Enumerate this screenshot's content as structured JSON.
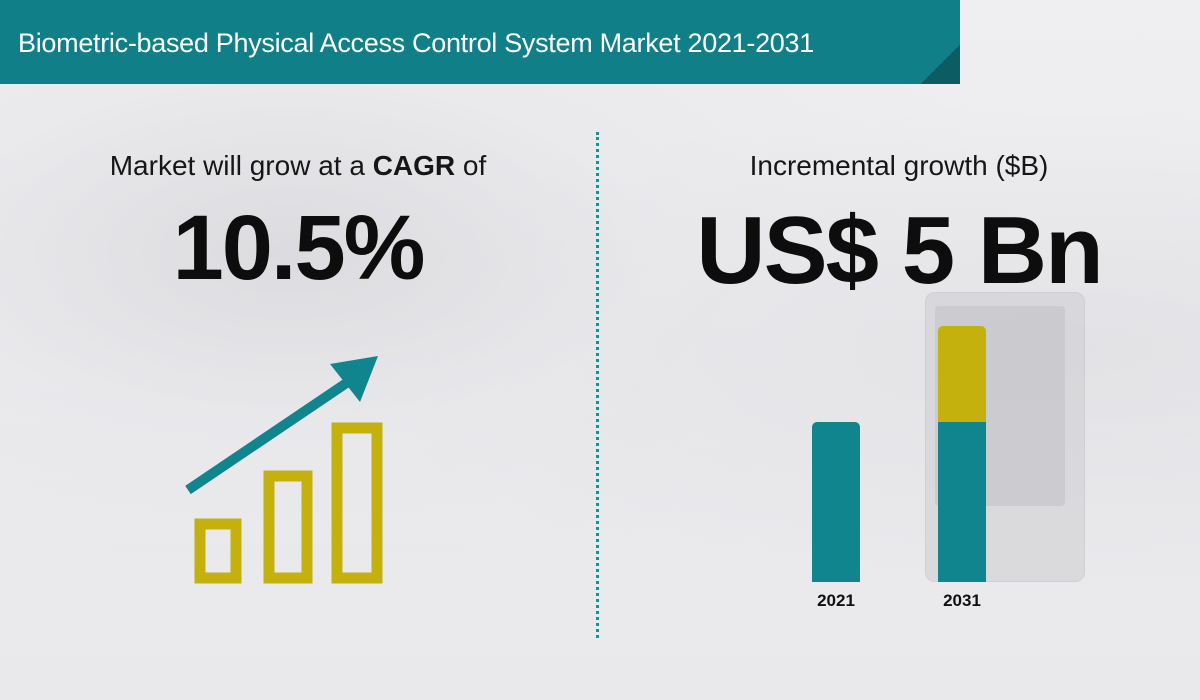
{
  "header": {
    "title": "Biometric-based Physical Access Control System Market 2021-2031",
    "banner_color": "#117f88"
  },
  "cagr": {
    "label_prefix": "Market will grow at a ",
    "label_bold": "CAGR",
    "label_suffix": " of",
    "value": "10.5%",
    "icon": "growth-bars-arrow-icon",
    "icon_bar_color": "#c4b10d",
    "icon_arrow_color": "#11858e"
  },
  "incremental": {
    "label": "Incremental growth ($B)",
    "value": "US$ 5 Bn"
  },
  "chart_data": {
    "type": "bar",
    "stacked": true,
    "categories": [
      "2021",
      "2031"
    ],
    "series": [
      {
        "values": [
          5,
          5
        ],
        "color": "#11858e"
      },
      {
        "values": [
          0,
          3
        ],
        "color": "#c4b10d"
      }
    ],
    "ylim": [
      0,
      8
    ],
    "grid": false,
    "title": "",
    "xlabel": "",
    "ylabel": ""
  }
}
